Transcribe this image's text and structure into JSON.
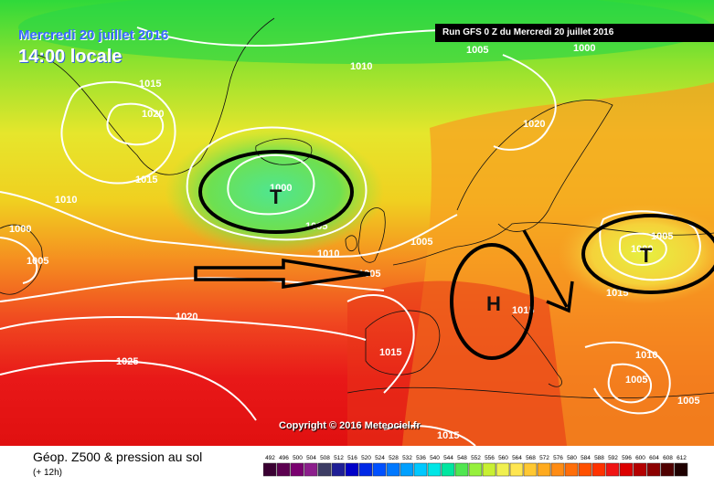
{
  "header": {
    "date": "Mercredi 20 juillet 2016",
    "local_time": "14:00 locale",
    "run": "Run GFS 0 Z du Mercredi 20 juillet 2016"
  },
  "copyright": "Copyright © 2016 Meteociel.fr",
  "legend": {
    "title": "Géop. Z500 & pression au sol",
    "subtitle": "(+ 12h)",
    "values": [
      "492",
      "496",
      "500",
      "504",
      "508",
      "512",
      "516",
      "520",
      "524",
      "528",
      "532",
      "536",
      "540",
      "544",
      "548",
      "552",
      "556",
      "560",
      "564",
      "568",
      "572",
      "576",
      "580",
      "584",
      "588",
      "592",
      "596",
      "600",
      "604",
      "608",
      "612"
    ],
    "colors": [
      "#3a0032",
      "#5c0050",
      "#7a0070",
      "#8c1e8c",
      "#3c3c64",
      "#1e1e96",
      "#0000c8",
      "#0028e6",
      "#0050ff",
      "#0078ff",
      "#00a0ff",
      "#00c8ff",
      "#00e6e6",
      "#00e6a0",
      "#50e650",
      "#96f03c",
      "#c8f032",
      "#f0f050",
      "#ffe650",
      "#ffc832",
      "#ffaa1e",
      "#ff8c14",
      "#ff6e0a",
      "#ff5000",
      "#ff3200",
      "#f01414",
      "#dc0000",
      "#b40000",
      "#8c0000",
      "#500000",
      "#1e0000"
    ]
  },
  "pressure_labels": {
    "l01": "1005",
    "l02": "1000",
    "l03": "1010",
    "l04": "1015",
    "l05": "1020",
    "l06": "1015",
    "l07": "1010",
    "l08": "1000",
    "l09": "1005",
    "l10": "1000",
    "l11": "1005",
    "l12": "1010",
    "l13": "1020",
    "l14": "1005",
    "l15": "1020",
    "l16": "1025",
    "l17": "1005",
    "l18": "1015",
    "l19": "1000",
    "l20": "1005",
    "l21": "1015",
    "l22": "1010",
    "l23": "1005",
    "l24": "1005",
    "l25": "1015",
    "l26": "1015"
  },
  "systems": {
    "low_atlantic": "T",
    "high_france": "H",
    "low_east": "T"
  }
}
